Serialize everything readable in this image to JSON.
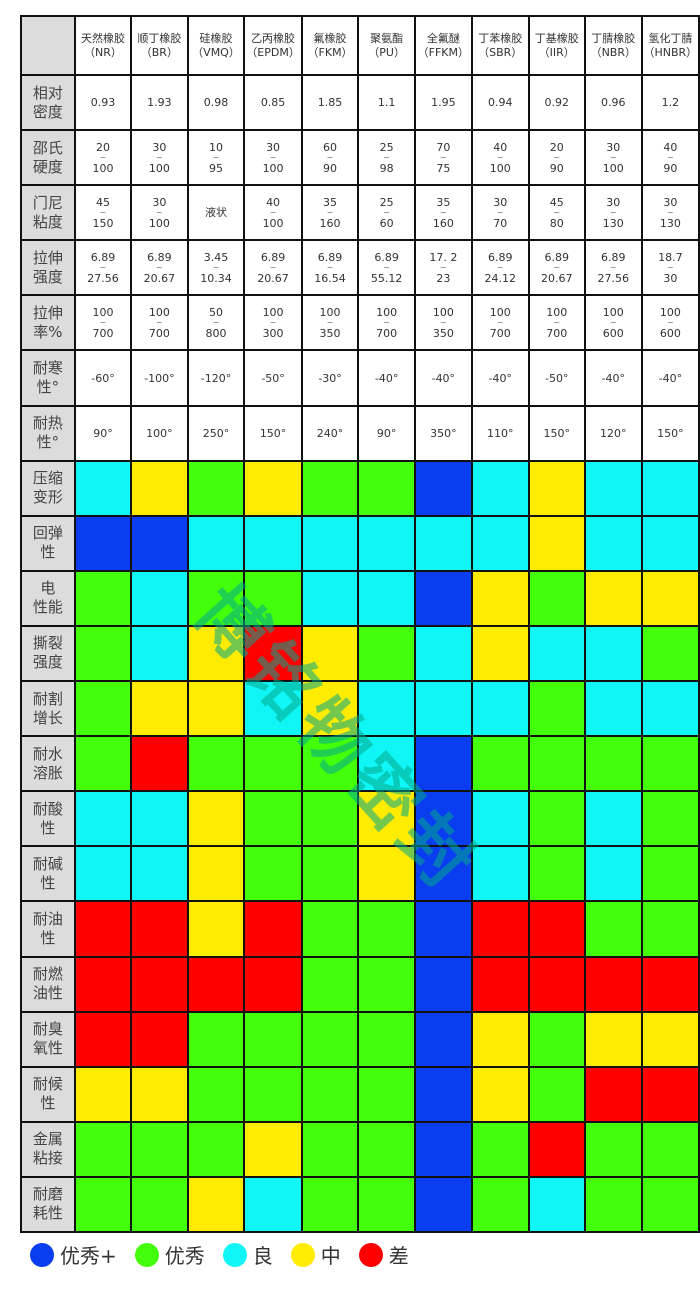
{
  "columns": [
    {
      "name": "天然橡胶",
      "code": "（NR）"
    },
    {
      "name": "顺丁橡胶",
      "code": "（BR）"
    },
    {
      "name": "硅橡胶",
      "code": "（VMQ）"
    },
    {
      "name": "乙丙橡胶",
      "code": "（EPDM）"
    },
    {
      "name": "氟橡胶",
      "code": "（FKM）"
    },
    {
      "name": "聚氨酯",
      "code": "（PU）"
    },
    {
      "name": "全氟醚",
      "code": "（FFKM）"
    },
    {
      "name": "丁苯橡胶",
      "code": "（SBR）"
    },
    {
      "name": "丁基橡胶",
      "code": "（IIR）"
    },
    {
      "name": "丁腈橡胶",
      "code": "（NBR）"
    },
    {
      "name": "氢化丁腈",
      "code": "（HNBR）"
    }
  ],
  "numeric_rows": [
    {
      "label": [
        "相对",
        "密度"
      ],
      "values": [
        "0.93",
        "1.93",
        "0.98",
        "0.85",
        "1.85",
        "1.1",
        "1.95",
        "0.94",
        "0.92",
        "0.96",
        "1.2"
      ]
    },
    {
      "label": [
        "邵氏",
        "硬度"
      ],
      "values": [
        [
          "20",
          "100"
        ],
        [
          "30",
          "100"
        ],
        [
          "10",
          "95"
        ],
        [
          "30",
          "100"
        ],
        [
          "60",
          "90"
        ],
        [
          "25",
          "98"
        ],
        [
          "70",
          "75"
        ],
        [
          "40",
          "100"
        ],
        [
          "20",
          "90"
        ],
        [
          "30",
          "100"
        ],
        [
          "40",
          "90"
        ]
      ]
    },
    {
      "label": [
        "门尼",
        "粘度"
      ],
      "values": [
        [
          "45",
          "150"
        ],
        [
          "30",
          "100"
        ],
        "液状",
        [
          "40",
          "100"
        ],
        [
          "35",
          "160"
        ],
        [
          "25",
          "60"
        ],
        [
          "35",
          "160"
        ],
        [
          "30",
          "70"
        ],
        [
          "45",
          "80"
        ],
        [
          "30",
          "130"
        ],
        [
          "30",
          "130"
        ]
      ]
    },
    {
      "label": [
        "拉伸",
        "强度"
      ],
      "values": [
        [
          "6.89",
          "27.56"
        ],
        [
          "6.89",
          "20.67"
        ],
        [
          "3.45",
          "10.34"
        ],
        [
          "6.89",
          "20.67"
        ],
        [
          "6.89",
          "16.54"
        ],
        [
          "6.89",
          "55.12"
        ],
        [
          "17. 2",
          "23"
        ],
        [
          "6.89",
          "24.12"
        ],
        [
          "6.89",
          "20.67"
        ],
        [
          "6.89",
          "27.56"
        ],
        [
          "18.7",
          "30"
        ]
      ]
    },
    {
      "label": [
        "拉伸",
        "率%"
      ],
      "values": [
        [
          "100",
          "700"
        ],
        [
          "100",
          "700"
        ],
        [
          "50",
          "800"
        ],
        [
          "100",
          "300"
        ],
        [
          "100",
          "350"
        ],
        [
          "100",
          "700"
        ],
        [
          "100",
          "350"
        ],
        [
          "100",
          "700"
        ],
        [
          "100",
          "700"
        ],
        [
          "100",
          "600"
        ],
        [
          "100",
          "600"
        ]
      ]
    },
    {
      "label": [
        "耐寒",
        "性°"
      ],
      "values": [
        "-60°",
        "-100°",
        "-120°",
        "-50°",
        "-30°",
        "-40°",
        "-40°",
        "-40°",
        "-50°",
        "-40°",
        "-40°"
      ]
    },
    {
      "label": [
        "耐热",
        "性°"
      ],
      "values": [
        "90°",
        "100°",
        "250°",
        "150°",
        "240°",
        "90°",
        "350°",
        "110°",
        "150°",
        "120°",
        "150°"
      ]
    }
  ],
  "range_separator": "~",
  "rating_rows": [
    {
      "label": [
        "压缩",
        "变形"
      ],
      "ratings": [
        "C",
        "Y",
        "G",
        "Y",
        "G",
        "G",
        "B",
        "C",
        "Y",
        "C",
        "C"
      ]
    },
    {
      "label": [
        "回弹",
        "性"
      ],
      "ratings": [
        "B",
        "B",
        "C",
        "C",
        "C",
        "C",
        "C",
        "C",
        "Y",
        "C",
        "C"
      ]
    },
    {
      "label": [
        "电",
        "性能"
      ],
      "ratings": [
        "G",
        "C",
        "G",
        "G",
        "C",
        "C",
        "B",
        "Y",
        "G",
        "Y",
        "Y"
      ]
    },
    {
      "label": [
        "撕裂",
        "强度"
      ],
      "ratings": [
        "G",
        "C",
        "Y",
        "R",
        "Y",
        "G",
        "C",
        "Y",
        "C",
        "C",
        "G"
      ]
    },
    {
      "label": [
        "耐割",
        "增长"
      ],
      "ratings": [
        "G",
        "Y",
        "Y",
        "C",
        "Y",
        "C",
        "C",
        "C",
        "G",
        "C",
        "C"
      ]
    },
    {
      "label": [
        "耐水",
        "溶胀"
      ],
      "ratings": [
        "G",
        "R",
        "G",
        "G",
        "G",
        "C",
        "B",
        "G",
        "G",
        "G",
        "G"
      ]
    },
    {
      "label": [
        "耐酸",
        "性"
      ],
      "ratings": [
        "C",
        "C",
        "Y",
        "G",
        "G",
        "Y",
        "B",
        "C",
        "G",
        "C",
        "G"
      ]
    },
    {
      "label": [
        "耐碱",
        "性"
      ],
      "ratings": [
        "C",
        "C",
        "Y",
        "G",
        "G",
        "Y",
        "B",
        "C",
        "G",
        "C",
        "G"
      ]
    },
    {
      "label": [
        "耐油",
        "性"
      ],
      "ratings": [
        "R",
        "R",
        "Y",
        "R",
        "G",
        "G",
        "B",
        "R",
        "R",
        "G",
        "G"
      ]
    },
    {
      "label": [
        "耐燃",
        "油性"
      ],
      "ratings": [
        "R",
        "R",
        "R",
        "R",
        "G",
        "G",
        "B",
        "R",
        "R",
        "R",
        "R"
      ]
    },
    {
      "label": [
        "耐臭",
        "氧性"
      ],
      "ratings": [
        "R",
        "R",
        "G",
        "G",
        "G",
        "G",
        "B",
        "Y",
        "G",
        "Y",
        "Y"
      ]
    },
    {
      "label": [
        "耐候",
        "性"
      ],
      "ratings": [
        "Y",
        "Y",
        "G",
        "G",
        "G",
        "G",
        "B",
        "Y",
        "G",
        "R",
        "R"
      ]
    },
    {
      "label": [
        "金属",
        "粘接"
      ],
      "ratings": [
        "G",
        "G",
        "G",
        "Y",
        "G",
        "G",
        "B",
        "G",
        "R",
        "G",
        "G"
      ]
    },
    {
      "label": [
        "耐磨",
        "耗性"
      ],
      "ratings": [
        "G",
        "G",
        "Y",
        "C",
        "G",
        "G",
        "B",
        "G",
        "C",
        "G",
        "G"
      ]
    }
  ],
  "legend": [
    {
      "key": "B",
      "label": "优秀+",
      "color": "#0a3cf0"
    },
    {
      "key": "G",
      "label": "优秀",
      "color": "#44ff0a"
    },
    {
      "key": "C",
      "label": "良",
      "color": "#10f5f5"
    },
    {
      "key": "Y",
      "label": "中",
      "color": "#ffec00"
    },
    {
      "key": "R",
      "label": "差",
      "color": "#ff0000"
    }
  ],
  "watermark": "博铭物密封"
}
